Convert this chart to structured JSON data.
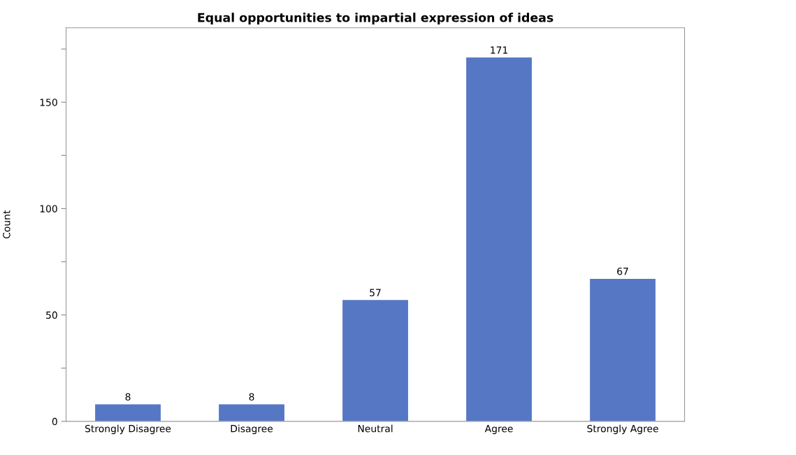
{
  "chart_data": {
    "type": "bar",
    "title": "Equal opportunities to impartial expression of ideas",
    "ylabel": "Count",
    "categories": [
      "Strongly Disagree",
      "Disagree",
      "Neutral",
      "Agree",
      "Strongly Agree"
    ],
    "values": [
      8,
      8,
      57,
      171,
      67
    ],
    "color": "#5577c4",
    "ylim": [
      0,
      185
    ],
    "yticks": [
      0,
      {
        "value": 25,
        "label": null
      },
      50,
      {
        "value": 75,
        "label": null
      },
      100,
      {
        "value": 125,
        "label": null
      },
      150,
      {
        "value": 175,
        "label": null
      }
    ],
    "data_labels": true,
    "grid": false,
    "legend": false
  }
}
